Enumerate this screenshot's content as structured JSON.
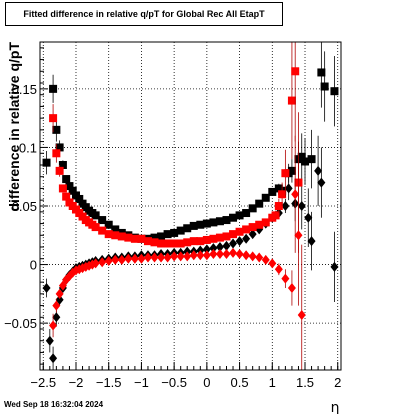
{
  "title": "Fitted difference in relative q/pT for Global Rec All EtapT",
  "timestamp": "Wed Sep 18 16:32:04 2024",
  "colors": {
    "series_black": "#000000",
    "series_red": "#ff0000",
    "error_red": "#b00000"
  },
  "chart_data": {
    "type": "scatter",
    "title": "Fitted difference in relative q/pT for Global Rec All EtapT",
    "xlabel": "η",
    "ylabel": "difference in relative q/pT",
    "xlim": [
      -2.55,
      2.05
    ],
    "ylim": [
      -0.09,
      0.19
    ],
    "x_ticks": [
      -2.5,
      -2,
      -1.5,
      -1,
      -0.5,
      0,
      0.5,
      1,
      1.5,
      2
    ],
    "x_tick_labels": [
      "−2.5",
      "−2",
      "−1.5",
      "−1",
      "−0.5",
      "0",
      "0.5",
      "1",
      "1.5",
      "2"
    ],
    "y_ticks": [
      -0.05,
      0,
      0.05,
      0.1,
      0.15
    ],
    "y_tick_labels": [
      "−0.05",
      "0",
      "0.05",
      "0.1",
      "0.15"
    ],
    "grid": true,
    "series": [
      {
        "marker": "square",
        "color": "#000000",
        "x": [
          -2.45,
          -2.35,
          -2.3,
          -2.25,
          -2.2,
          -2.15,
          -2.1,
          -2.05,
          -2.0,
          -1.95,
          -1.9,
          -1.85,
          -1.8,
          -1.75,
          -1.7,
          -1.6,
          -1.5,
          -1.4,
          -1.3,
          -1.2,
          -1.1,
          -1.0,
          -0.9,
          -0.8,
          -0.7,
          -0.6,
          -0.5,
          -0.4,
          -0.3,
          -0.2,
          -0.1,
          0.0,
          0.1,
          0.2,
          0.3,
          0.4,
          0.5,
          0.6,
          0.7,
          0.8,
          0.9,
          1.0,
          1.1,
          1.15,
          1.25,
          1.3,
          1.4,
          1.45,
          1.5,
          1.6,
          1.75,
          1.8,
          1.95
        ],
        "y": [
          0.087,
          0.15,
          0.115,
          0.1,
          0.085,
          0.073,
          0.067,
          0.063,
          0.059,
          0.056,
          0.052,
          0.049,
          0.046,
          0.044,
          0.042,
          0.038,
          0.034,
          0.03,
          0.027,
          0.025,
          0.023,
          0.022,
          0.022,
          0.023,
          0.024,
          0.026,
          0.027,
          0.029,
          0.031,
          0.033,
          0.034,
          0.035,
          0.036,
          0.037,
          0.038,
          0.04,
          0.042,
          0.044,
          0.048,
          0.052,
          0.057,
          0.062,
          0.065,
          0.063,
          0.078,
          0.08,
          0.09,
          0.092,
          0.088,
          0.09,
          0.164,
          0.152,
          0.148
        ],
        "err": [
          0.01,
          0.012,
          0.01,
          0.006,
          0.004,
          0.003,
          0.002,
          0.002,
          0.002,
          0.0015,
          0.0015,
          0.0015,
          0.001,
          0.001,
          0.001,
          0.001,
          0.001,
          0.001,
          0.001,
          0.001,
          0.001,
          0.001,
          0.001,
          0.001,
          0.001,
          0.001,
          0.001,
          0.001,
          0.001,
          0.001,
          0.001,
          0.001,
          0.001,
          0.001,
          0.001,
          0.001,
          0.001,
          0.001,
          0.001,
          0.0015,
          0.002,
          0.003,
          0.004,
          0.005,
          0.008,
          0.01,
          0.015,
          0.02,
          0.02,
          0.025,
          0.03,
          0.03,
          0.03
        ]
      },
      {
        "marker": "diamond",
        "color": "#000000",
        "x": [
          -2.45,
          -2.4,
          -2.35,
          -2.3,
          -2.25,
          -2.2,
          -2.15,
          -2.1,
          -2.05,
          -2.0,
          -1.95,
          -1.9,
          -1.85,
          -1.8,
          -1.75,
          -1.7,
          -1.6,
          -1.5,
          -1.4,
          -1.3,
          -1.2,
          -1.1,
          -1.0,
          -0.9,
          -0.8,
          -0.7,
          -0.6,
          -0.5,
          -0.4,
          -0.3,
          -0.2,
          -0.1,
          0.0,
          0.1,
          0.2,
          0.3,
          0.4,
          0.5,
          0.6,
          0.7,
          0.8,
          0.9,
          1.0,
          1.1,
          1.2,
          1.25,
          1.35,
          1.45,
          1.55,
          1.6,
          1.7,
          1.75,
          1.95
        ],
        "y": [
          -0.02,
          -0.065,
          -0.08,
          -0.045,
          -0.03,
          -0.02,
          -0.013,
          -0.009,
          -0.006,
          -0.003,
          -0.002,
          -0.001,
          0.0,
          0.001,
          0.002,
          0.003,
          0.004,
          0.005,
          0.006,
          0.006,
          0.007,
          0.007,
          0.008,
          0.008,
          0.008,
          0.009,
          0.009,
          0.01,
          0.01,
          0.011,
          0.011,
          0.012,
          0.013,
          0.014,
          0.015,
          0.016,
          0.018,
          0.02,
          0.022,
          0.026,
          0.03,
          0.035,
          0.04,
          0.044,
          0.05,
          0.065,
          0.052,
          0.05,
          0.04,
          0.02,
          0.08,
          0.07,
          -0.002
        ],
        "err": [
          0.008,
          0.01,
          0.01,
          0.008,
          0.005,
          0.003,
          0.002,
          0.002,
          0.0015,
          0.0015,
          0.001,
          0.001,
          0.001,
          0.001,
          0.001,
          0.001,
          0.001,
          0.001,
          0.001,
          0.001,
          0.001,
          0.001,
          0.001,
          0.001,
          0.001,
          0.001,
          0.001,
          0.001,
          0.001,
          0.001,
          0.001,
          0.001,
          0.001,
          0.001,
          0.001,
          0.001,
          0.001,
          0.001,
          0.001,
          0.001,
          0.0015,
          0.002,
          0.003,
          0.004,
          0.006,
          0.01,
          0.015,
          0.02,
          0.025,
          0.025,
          0.03,
          0.03,
          0.03
        ]
      },
      {
        "marker": "square",
        "color": "#ff0000",
        "x": [
          -2.35,
          -2.3,
          -2.25,
          -2.2,
          -2.15,
          -2.1,
          -2.05,
          -2.0,
          -1.95,
          -1.9,
          -1.85,
          -1.8,
          -1.75,
          -1.7,
          -1.6,
          -1.5,
          -1.4,
          -1.3,
          -1.2,
          -1.1,
          -1.0,
          -0.9,
          -0.8,
          -0.7,
          -0.6,
          -0.5,
          -0.4,
          -0.3,
          -0.2,
          -0.1,
          0.0,
          0.1,
          0.2,
          0.3,
          0.4,
          0.5,
          0.6,
          0.7,
          0.8,
          0.9,
          1.0,
          1.05,
          1.1,
          1.15,
          1.2,
          1.3,
          1.35,
          1.4
        ],
        "y": [
          0.125,
          0.095,
          0.08,
          0.065,
          0.058,
          0.053,
          0.05,
          0.047,
          0.044,
          0.041,
          0.038,
          0.036,
          0.034,
          0.032,
          0.029,
          0.026,
          0.025,
          0.024,
          0.023,
          0.022,
          0.022,
          0.02,
          0.019,
          0.018,
          0.018,
          0.018,
          0.018,
          0.019,
          0.02,
          0.02,
          0.021,
          0.022,
          0.023,
          0.024,
          0.026,
          0.028,
          0.03,
          0.032,
          0.034,
          0.036,
          0.04,
          0.042,
          0.05,
          0.06,
          0.078,
          0.14,
          0.165,
          0.07
        ],
        "err": [
          0.012,
          0.008,
          0.005,
          0.003,
          0.002,
          0.002,
          0.0015,
          0.0015,
          0.001,
          0.001,
          0.001,
          0.001,
          0.001,
          0.001,
          0.001,
          0.001,
          0.001,
          0.001,
          0.001,
          0.001,
          0.001,
          0.001,
          0.001,
          0.001,
          0.001,
          0.001,
          0.001,
          0.001,
          0.001,
          0.001,
          0.001,
          0.001,
          0.001,
          0.001,
          0.001,
          0.001,
          0.001,
          0.001,
          0.0015,
          0.002,
          0.003,
          0.004,
          0.006,
          0.01,
          0.02,
          0.05,
          0.06,
          0.06
        ]
      },
      {
        "marker": "diamond",
        "color": "#ff0000",
        "x": [
          -2.35,
          -2.3,
          -2.25,
          -2.2,
          -2.15,
          -2.1,
          -2.05,
          -2.0,
          -1.95,
          -1.9,
          -1.85,
          -1.8,
          -1.75,
          -1.7,
          -1.6,
          -1.5,
          -1.4,
          -1.3,
          -1.2,
          -1.1,
          -1.0,
          -0.9,
          -0.8,
          -0.7,
          -0.6,
          -0.5,
          -0.4,
          -0.3,
          -0.2,
          -0.1,
          0.0,
          0.1,
          0.2,
          0.3,
          0.4,
          0.5,
          0.6,
          0.7,
          0.8,
          0.9,
          1.0,
          1.1,
          1.2,
          1.3,
          1.35,
          1.4,
          1.45
        ],
        "y": [
          -0.052,
          -0.035,
          -0.025,
          -0.018,
          -0.013,
          -0.01,
          -0.007,
          -0.005,
          -0.004,
          -0.003,
          -0.002,
          -0.001,
          0.0,
          0.001,
          0.002,
          0.003,
          0.004,
          0.004,
          0.005,
          0.005,
          0.005,
          0.006,
          0.006,
          0.006,
          0.006,
          0.007,
          0.007,
          0.007,
          0.008,
          0.008,
          0.008,
          0.009,
          0.009,
          0.009,
          0.01,
          0.009,
          0.008,
          0.007,
          0.006,
          0.004,
          0.001,
          -0.004,
          -0.012,
          -0.02,
          0.06,
          0.025,
          -0.043
        ],
        "err": [
          0.01,
          0.006,
          0.004,
          0.003,
          0.002,
          0.002,
          0.0015,
          0.0015,
          0.001,
          0.001,
          0.001,
          0.001,
          0.001,
          0.001,
          0.001,
          0.001,
          0.001,
          0.001,
          0.001,
          0.001,
          0.001,
          0.001,
          0.001,
          0.001,
          0.001,
          0.001,
          0.001,
          0.001,
          0.001,
          0.001,
          0.001,
          0.001,
          0.001,
          0.001,
          0.001,
          0.001,
          0.001,
          0.001,
          0.001,
          0.002,
          0.003,
          0.005,
          0.008,
          0.015,
          0.05,
          0.06,
          0.06
        ]
      }
    ]
  }
}
